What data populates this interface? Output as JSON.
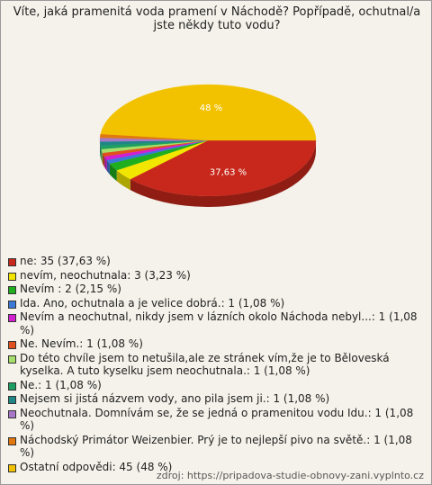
{
  "chart_data": {
    "type": "pie",
    "title": "Víte, jaká pramenitá voda pramení v Náchodě? Popřípadě, ochutnal/a jste někdy tuto vodu?",
    "categories": [
      "ne: 35 (37,63 %)",
      "nevím, neochutnala: 3 (3,23 %)",
      "Nevím : 2 (2,15 %)",
      "Ida. Ano, ochutnala a je velice dobrá.: 1 (1,08 %)",
      "Nevím a neochutnal, nikdy jsem v lázních okolo Náchoda nebyl...: 1 (1,08 %)",
      "Ne. Nevím.: 1 (1,08 %)",
      "Do této chvíle jsem to netušila,ale ze stránek vím,že je to Běloveská kyselka. A tuto kyselku jsem neochutnala.: 1 (1,08 %)",
      "Ne.: 1 (1,08 %)",
      "Nejsem si jistá názvem vody, ano pila jsem ji.: 1 (1,08 %)",
      "Neochutnala. Domnívám se, že se jedná o pramenitou vodu Idu.: 1 (1,08 %)",
      "Náchodský Primátor Weizenbier. Prý je to nejlepší pivo na světě.: 1 (1,08 %)",
      "Ostatní odpovědi: 45 (48 %)"
    ],
    "values": [
      37.63,
      3.23,
      2.15,
      1.08,
      1.08,
      1.08,
      1.08,
      1.08,
      1.08,
      1.08,
      1.08,
      48
    ],
    "value_labels": [
      "37,63 %",
      null,
      null,
      null,
      null,
      null,
      null,
      null,
      null,
      null,
      null,
      "48 %"
    ],
    "colors": [
      "#c8281c",
      "#f2e600",
      "#1fae1f",
      "#3c78d8",
      "#d21fd2",
      "#e0501e",
      "#a6e06a",
      "#1e9e62",
      "#1f8585",
      "#a878c8",
      "#e0780f",
      "#f2c200"
    ],
    "source": "zdroj: https://pripadova-studie-obnovy-zani.vyplnto.cz"
  }
}
